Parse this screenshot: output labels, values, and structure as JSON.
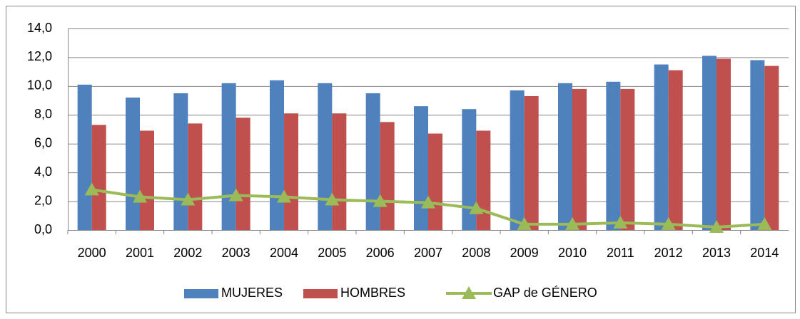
{
  "chart_data": {
    "type": "bar",
    "categories": [
      "2000",
      "2001",
      "2002",
      "2003",
      "2004",
      "2005",
      "2006",
      "2007",
      "2008",
      "2009",
      "2010",
      "2011",
      "2012",
      "2013",
      "2014"
    ],
    "series": [
      {
        "name": "MUJERES",
        "color": "#4f81bd",
        "values": [
          10.1,
          9.2,
          9.5,
          10.2,
          10.4,
          10.2,
          9.5,
          8.6,
          8.4,
          9.7,
          10.2,
          10.3,
          11.5,
          12.1,
          11.8
        ]
      },
      {
        "name": "HOMBRES",
        "color": "#c0504d",
        "values": [
          7.3,
          6.9,
          7.4,
          7.8,
          8.1,
          8.1,
          7.5,
          6.7,
          6.9,
          9.3,
          9.8,
          9.8,
          11.1,
          11.9,
          11.4
        ]
      },
      {
        "name": "GAP de GÉNERO",
        "color": "#9bbb59",
        "type": "line",
        "values": [
          2.8,
          2.3,
          2.1,
          2.4,
          2.3,
          2.1,
          2.0,
          1.9,
          1.5,
          0.4,
          0.4,
          0.5,
          0.4,
          0.2,
          0.4
        ]
      }
    ],
    "ylim": [
      0,
      14
    ],
    "yticks": [
      {
        "value": 0,
        "label": "0,0"
      },
      {
        "value": 2,
        "label": "2,0"
      },
      {
        "value": 4,
        "label": "4,0"
      },
      {
        "value": 6,
        "label": "6,0"
      },
      {
        "value": 8,
        "label": "8,0"
      },
      {
        "value": 10,
        "label": "10,0"
      },
      {
        "value": 12,
        "label": "12,0"
      },
      {
        "value": 14,
        "label": "14,0"
      }
    ],
    "grid": true,
    "legend": "bottom"
  }
}
